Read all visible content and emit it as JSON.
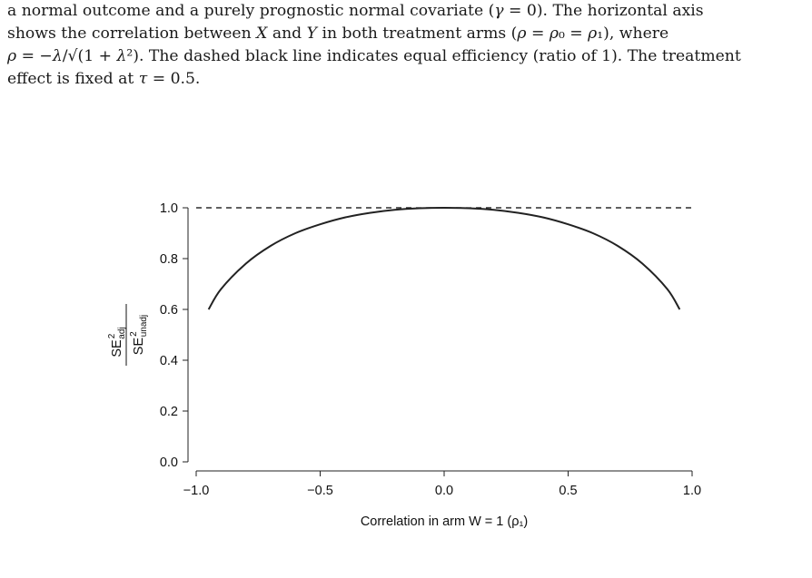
{
  "caption": {
    "line1_parts": [
      "a normal outcome and a purely prognostic normal covariate (",
      "γ",
      " = 0). The horizontal axis"
    ],
    "line2_parts": [
      "shows the correlation between ",
      "X",
      " and ",
      "Y",
      " in both treatment arms (",
      "ρ",
      " = ",
      "ρ",
      "₀",
      " = ",
      "ρ",
      "₁",
      "), where"
    ],
    "line3_parts": [
      "ρ",
      " = −",
      "λ",
      "/√(1 + ",
      "λ",
      "²). The dashed black line indicates equal efficiency (ratio of 1). The treatment"
    ],
    "line4_parts": [
      "effect is fixed at ",
      "τ",
      " = 0.5."
    ]
  },
  "chart_data": {
    "type": "line",
    "xlabel": "Correlation in arm W = 1 (ρ₁)",
    "ylabel": {
      "numerator": "SE",
      "numerator_sup": "2",
      "numerator_sub": "adj",
      "denominator": "SE",
      "denominator_sup": "2",
      "denominator_sub": "unadj"
    },
    "xlim": [
      -1.0,
      1.0
    ],
    "ylim": [
      0.0,
      1.0
    ],
    "x_ticks": [
      -1.0,
      -0.5,
      0.0,
      0.5,
      1.0
    ],
    "x_tick_labels": [
      "−1.0",
      "−0.5",
      "0.0",
      "0.5",
      "1.0"
    ],
    "y_ticks": [
      0.0,
      0.2,
      0.4,
      0.6,
      0.8,
      1.0
    ],
    "y_tick_labels": [
      "0.0",
      "0.2",
      "0.4",
      "0.6",
      "0.8",
      "1.0"
    ],
    "reference_line": {
      "y": 1.0,
      "style": "dashed",
      "color": "#000000"
    },
    "series": [
      {
        "x": [
          -0.95,
          -0.9,
          -0.8,
          -0.7,
          -0.6,
          -0.5,
          -0.4,
          -0.3,
          -0.2,
          -0.1,
          0.0,
          0.1,
          0.2,
          0.3,
          0.4,
          0.5,
          0.6,
          0.7,
          0.8,
          0.9,
          0.95
        ],
        "y": [
          0.6,
          0.68,
          0.78,
          0.85,
          0.9,
          0.935,
          0.962,
          0.98,
          0.992,
          0.998,
          1.0,
          0.998,
          0.992,
          0.98,
          0.962,
          0.935,
          0.9,
          0.85,
          0.78,
          0.68,
          0.6
        ],
        "color": "#222222"
      }
    ],
    "grid": false
  }
}
